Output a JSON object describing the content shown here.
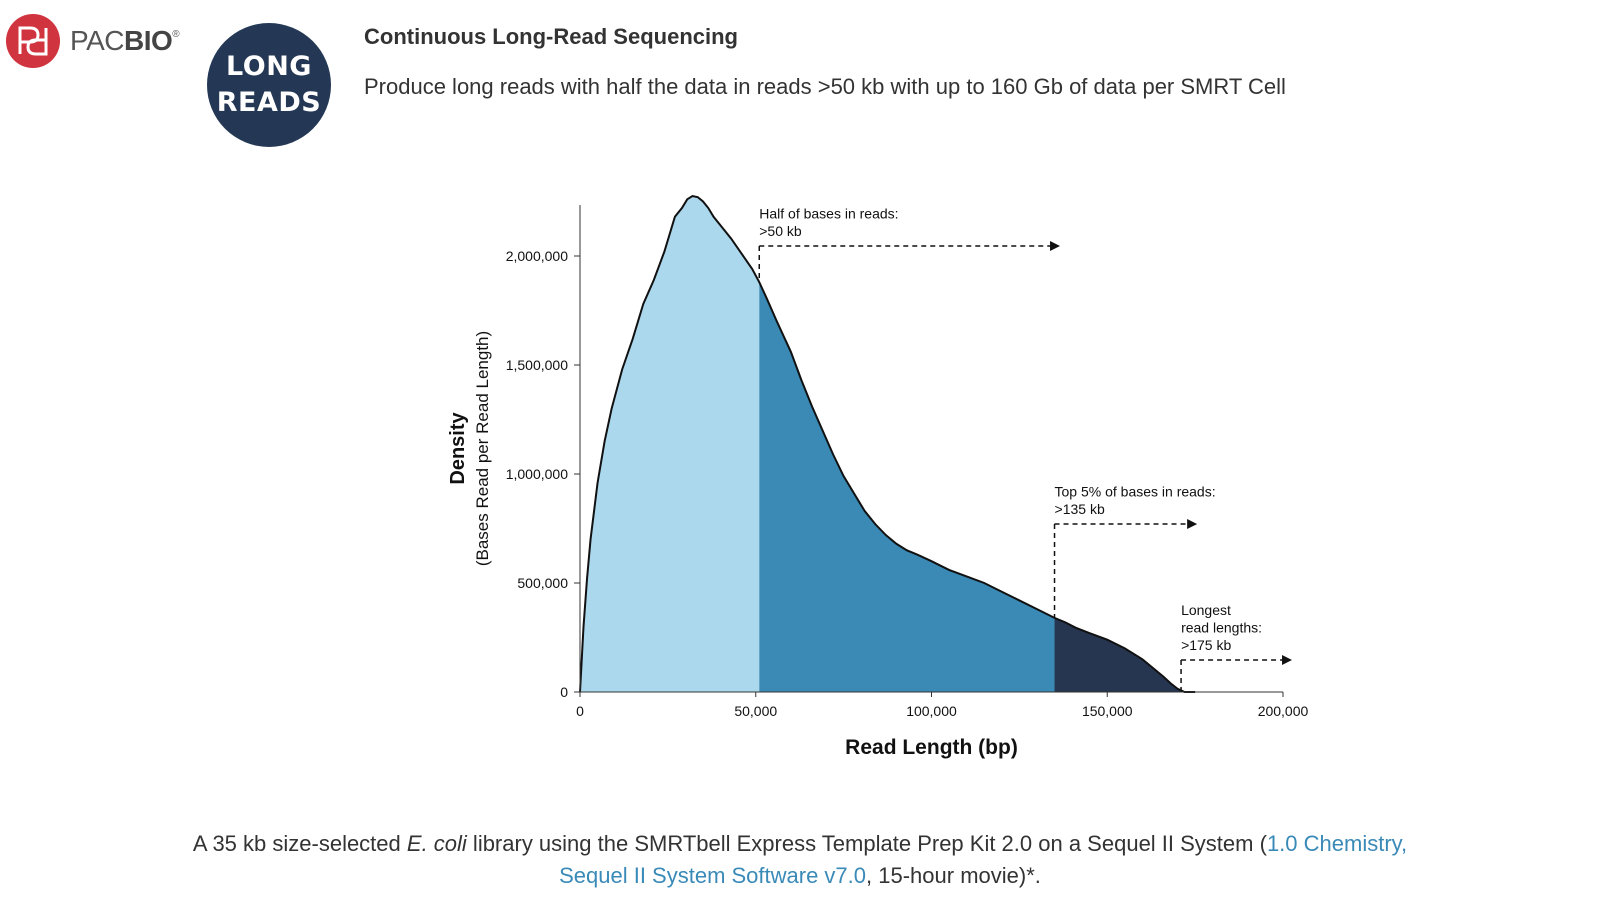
{
  "brand": {
    "pac": "PAC",
    "bio": "BIO",
    "reg": "®",
    "mark_colors": {
      "circle": "#d0343f",
      "glyph": "#ffffff"
    }
  },
  "badge": {
    "line1": "LONG",
    "line2": "READS",
    "color": "#243855"
  },
  "heading": "Continuous Long-Read Sequencing",
  "subheading": "Produce long reads with half the data in reads >50 kb with up to 160 Gb of data per SMRT Cell",
  "chart_data": {
    "type": "area",
    "xlabel": "Read Length (bp)",
    "ylabel_main": "Density",
    "ylabel_sub": "(Bases Read per Read Length)",
    "xlim": [
      0,
      200000
    ],
    "ylim": [
      0,
      2250000
    ],
    "xticks": [
      0,
      50000,
      100000,
      150000,
      200000
    ],
    "xtick_labels": [
      "0",
      "50,000",
      "100,000",
      "150,000",
      "200,000"
    ],
    "yticks": [
      0,
      500000,
      1000000,
      1500000,
      2000000
    ],
    "ytick_labels": [
      "0",
      "500,000",
      "1,000,000",
      "1,500,000",
      "2,000,000"
    ],
    "grid": false,
    "x": [
      0,
      1000,
      2000,
      3000,
      5000,
      7000,
      9000,
      12000,
      15000,
      18000,
      21000,
      24000,
      27000,
      29000,
      30500,
      32000,
      33500,
      35000,
      36500,
      38000,
      40000,
      43000,
      46000,
      49000,
      51000,
      53000,
      56000,
      60000,
      63000,
      66000,
      69000,
      72000,
      75000,
      78000,
      81000,
      84000,
      87000,
      90000,
      93000,
      96000,
      100000,
      105000,
      110000,
      115000,
      120000,
      125000,
      130000,
      135000,
      138000,
      141000,
      145000,
      150000,
      155000,
      160000,
      163000,
      166000,
      168000,
      170000,
      172000,
      175000,
      180000,
      200000
    ],
    "y": [
      0,
      300000,
      520000,
      700000,
      960000,
      1150000,
      1300000,
      1480000,
      1620000,
      1780000,
      1890000,
      2020000,
      2180000,
      2220000,
      2260000,
      2275000,
      2270000,
      2250000,
      2220000,
      2180000,
      2140000,
      2080000,
      2010000,
      1940000,
      1880000,
      1810000,
      1700000,
      1560000,
      1430000,
      1310000,
      1200000,
      1090000,
      990000,
      910000,
      830000,
      770000,
      720000,
      680000,
      650000,
      630000,
      600000,
      560000,
      530000,
      500000,
      460000,
      420000,
      380000,
      340000,
      320000,
      295000,
      270000,
      240000,
      200000,
      150000,
      110000,
      70000,
      40000,
      15000,
      0,
      0,
      0,
      0
    ],
    "regions": [
      {
        "from": 0,
        "to": 51000,
        "color": "#acd8ee"
      },
      {
        "from": 51000,
        "to": 135000,
        "color": "#3a8ab5"
      },
      {
        "from": 135000,
        "to": 175000,
        "color": "#263651"
      }
    ],
    "annotations": [
      {
        "x": 51000,
        "arrow_to": 136000,
        "text": [
          "Half of bases in reads:",
          ">50 kb"
        ]
      },
      {
        "x": 135000,
        "arrow_to": 175000,
        "text": [
          "Top 5% of bases in reads:",
          ">135 kb"
        ]
      },
      {
        "x": 171000,
        "arrow_to": 202000,
        "text": [
          "Longest",
          "read lengths:",
          ">175 kb"
        ]
      }
    ]
  },
  "caption": {
    "part1": "A 35 kb size-selected ",
    "italic": "E. coli",
    "part2": " library using the SMRTbell Express Template Prep Kit 2.0 on a Sequel II System (",
    "link": "1.0 Chemistry, Sequel II System Software v7.0",
    "part3": ", 15-hour movie)*."
  }
}
